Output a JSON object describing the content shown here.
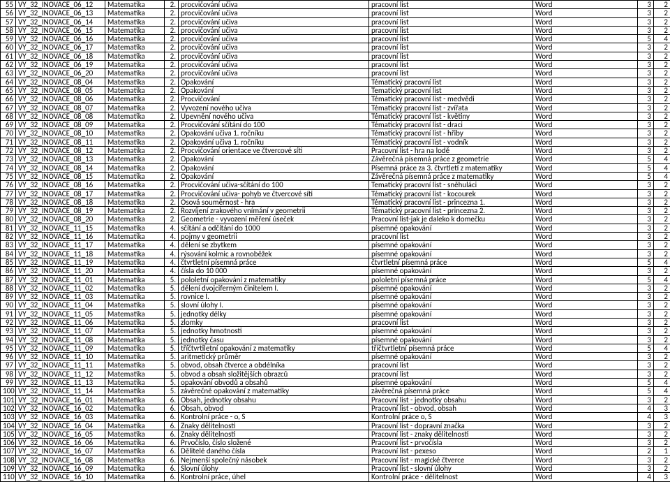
{
  "columns": [
    "num",
    "code",
    "subject",
    "grade",
    "topic",
    "output",
    "type",
    "a",
    "b"
  ],
  "rows": [
    [
      55,
      "VY_32_INOVACE_06_12",
      "Matematika",
      "2.",
      "procvičování učiva",
      "pracovní list",
      "Word",
      3,
      2
    ],
    [
      56,
      "VY_32_INOVACE_06_13",
      "Matematika",
      "2.",
      "procvičování učiva",
      "pracovní list",
      "Word",
      3,
      2
    ],
    [
      57,
      "VY_32_INOVACE_06_14",
      "Matematika",
      "2.",
      "procvičování učiva",
      "pracovní list",
      "Word",
      3,
      2
    ],
    [
      58,
      "VY_32_INOVACE_06_15",
      "Matematika",
      "2.",
      "procvičování učiva",
      "pracovní list",
      "Word",
      3,
      2
    ],
    [
      59,
      "VY_32_INOVACE_06_16",
      "Matematika",
      "2.",
      "procvičování učiva",
      "pracovní list",
      "Word",
      5,
      4
    ],
    [
      60,
      "VY_32_INOVACE_06_17",
      "Matematika",
      "2.",
      "procvičování učiva",
      "pracovní list",
      "Word",
      3,
      2
    ],
    [
      61,
      "VY_32_INOVACE_06_18",
      "Matematika",
      "2.",
      "procvičování učiva",
      "pracovní list",
      "Word",
      3,
      2
    ],
    [
      62,
      "VY_32_INOVACE_06_19",
      "Matematika",
      "2.",
      "procvičování učiva",
      "pracovní list",
      "Word",
      3,
      2
    ],
    [
      63,
      "VY_32_INOVACE_06_20",
      "Matematika",
      "2.",
      "procvičování učiva",
      "pracovní list",
      "Word",
      3,
      2
    ],
    [
      64,
      "VY_32_INOVACE_08_04",
      "Matematika",
      "2.",
      "Opakování",
      "Tématický pracovní list",
      "Word",
      3,
      2
    ],
    [
      65,
      "VY_32_INOVACE_08_05",
      "Matematika",
      "2.",
      "Opakování",
      "Tematický pracovní list",
      "Word",
      3,
      2
    ],
    [
      66,
      "VY_32_INOVACE_08_06",
      "Matematika",
      "2.",
      "Procvičování",
      "Tématický pracovní list - medvědi",
      "Word",
      3,
      2
    ],
    [
      67,
      "VY_32_INOVACE_08_07",
      "Matematika",
      "2.",
      "Vyvození nového učiva",
      "Tématický pracovní list - zvířata",
      "Word",
      3,
      2
    ],
    [
      68,
      "VY_32_INOVACE_08_08",
      "Matematika",
      "2.",
      "Upevnění nového učiva",
      "Tématický pracovní list - květiny",
      "Word",
      3,
      2
    ],
    [
      69,
      "VY_32_INOVACE_08_09",
      "Matematika",
      "2.",
      "Procvičování sčítání do 100",
      "Tématický pracovní list - draci",
      "Word",
      3,
      2
    ],
    [
      70,
      "VY_32_INOVACE_08_10",
      "Matematika",
      "2.",
      "Opakování učiva 1. ročníku",
      "Tématický pracovní list - hřiby",
      "Word",
      3,
      2
    ],
    [
      71,
      "VY_32_INOVACE_08_11",
      "Matematika",
      "2.",
      "Opakování učiva 1. ročníku",
      "Tématický pracovní list - vodník",
      "Word",
      3,
      2
    ],
    [
      72,
      "VY_32_INOVACE_08_12",
      "Matematika",
      "2.",
      "Procvičování orientace ve čtvercové síti",
      "Pracovní list - hra na lodě",
      "Word",
      3,
      2
    ],
    [
      73,
      "VY_32_INOVACE_08_13",
      "Matematika",
      "2.",
      "Opakování",
      "Závěrečná písemná práce z geometrie",
      "Word",
      5,
      4
    ],
    [
      74,
      "VY_32_INOVACE_08_14",
      "Matematika",
      "2.",
      "Opakování",
      "Písemná práce za 3. čtvrtletí z matematiky",
      "Word",
      5,
      4
    ],
    [
      75,
      "VY_32_INOVACE_08_15",
      "Matematika",
      "2.",
      "Opakování",
      "Závěrečná písemná práce z matematiky",
      "Word",
      5,
      4
    ],
    [
      76,
      "VY_32_INOVACE_08_16",
      "Matematika",
      "2.",
      "Procvičování učiva-sčítání do 100",
      "Tematický pracovní  list - sněhuláci",
      "Word",
      3,
      2
    ],
    [
      77,
      "VY_32_INOVACE_08_17",
      "Matematika",
      "2.",
      "Procvičování učiva- pohyb ve čtvercové síti",
      "Tématický pracovní list  - kocourek",
      "Word",
      3,
      2
    ],
    [
      78,
      "VY_32_INOVACE_08_18",
      "Matematika",
      "2.",
      "Osová souměrnost - hra",
      "Tématický pracovní list - princezna 1.",
      "Word",
      3,
      2
    ],
    [
      79,
      "VY_32_INOVACE_08_19",
      "Matematika",
      "2.",
      "Rozvíjení zrakového vnímání v geometrii",
      "Tématický pracovní list - princezna 2.",
      "Word",
      3,
      2
    ],
    [
      80,
      "VY_32_INOVACE_08_20",
      "Matematika",
      "2.",
      "Geometrie - vyvození měření úseček",
      "Pracovní list-jak je daleko k domečku",
      "Word",
      3,
      2
    ],
    [
      81,
      "VY_32_INOVACE_11_15",
      "Matematika",
      "4.",
      "sčítání a odčítání do 1000",
      "písemné opakování",
      "Word",
      3,
      2
    ],
    [
      82,
      "VY_32_INOVACE_11_16",
      "Matematika",
      "4.",
      "pojmy v geometrii",
      "pracovní list",
      "Word",
      3,
      2
    ],
    [
      83,
      "VY_32_INOVACE_11_17",
      "Matematika",
      "4.",
      "dělení se zbytkem",
      "písemné opakování",
      "Word",
      3,
      2
    ],
    [
      84,
      "VY_32_INOVACE_11_18",
      "Matematika",
      "4.",
      "rýsování kolmic a rovnoběžek",
      "písemné opakování",
      "Word",
      3,
      2
    ],
    [
      85,
      "VY_32_INOVACE_11_19",
      "Matematika",
      "4.",
      "čtvrtletní písemná práce",
      "čtvrtletní písemná práce",
      "Word",
      5,
      4
    ],
    [
      86,
      "VY_32_INOVACE_11_20",
      "Matematika",
      "4.",
      "čísla do 10 000",
      "písemné opakování",
      "Word",
      3,
      2
    ],
    [
      87,
      "VY_32_INOVACE_11_01",
      "Matematika",
      "5.",
      "pololetní opakování z matematiky",
      "pololetní písemná práce",
      "Word",
      5,
      4
    ],
    [
      88,
      "VY_32_INOVACE_11_02",
      "Matematika",
      "5.",
      "dělení dvojciferným činitelem I.",
      "písemné opakování",
      "Word",
      3,
      2
    ],
    [
      89,
      "VY_32_INOVACE_11_03",
      "Matematika",
      "5.",
      "rovnice I.",
      "písemné opakování",
      "Word",
      3,
      2
    ],
    [
      90,
      "VY_32_INOVACE_11_04",
      "Matematika",
      "5.",
      "slovní úlohy I.",
      "písemné opakování",
      "Word",
      3,
      2
    ],
    [
      91,
      "VY_32_INOVACE_11_05",
      "Matematika",
      "5.",
      "jednotky délky",
      "písemné opakování",
      "Word",
      3,
      2
    ],
    [
      92,
      "VY_32_INOVACE_11_06",
      "Matematika",
      "5.",
      "zlomky",
      "pracovní list",
      "Word",
      3,
      2
    ],
    [
      93,
      "VY_32_INOVACE_11_07",
      "Matematika",
      "5.",
      "jednotky hmotnosti",
      "písemné opakování",
      "Word",
      3,
      2
    ],
    [
      94,
      "VY_32_INOVACE_11_08",
      "Matematika",
      "5.",
      "jednotky času",
      "písemné opakování",
      "Word",
      3,
      2
    ],
    [
      95,
      "VY_32_INOVACE_11_09",
      "Matematika",
      "5.",
      "tříčtvrtiletní opakování z matematiky",
      "tříčtvrtletní písemná práce",
      "Word",
      5,
      4
    ],
    [
      96,
      "VY_32_INOVACE_11_10",
      "Matematika",
      "5.",
      "aritmetický průměr",
      "písemné opakování",
      "Word",
      3,
      2
    ],
    [
      97,
      "VY_32_INOVACE_11_11",
      "Matematika",
      "5.",
      "obvod, obsah čtverce a obdélníka",
      "pracovní list",
      "Word",
      3,
      2
    ],
    [
      98,
      "VY_32_INOVACE_11_12",
      "Matematika",
      "5.",
      "obvod a obsah složitějších obrazců",
      "pracovní list",
      "Word",
      3,
      2
    ],
    [
      99,
      "VY_32_INOVACE_11_13",
      "Matematika",
      "5.",
      "opakování obvodů a obsahů",
      "písemné opakování",
      "Word",
      5,
      4
    ],
    [
      100,
      "VY_32_INOVACE_11_14",
      "Matematika",
      "5.",
      "závěrečné opakování z matematiky",
      "závěrečná písemná práce",
      "Word",
      5,
      4
    ],
    [
      101,
      "VY_32_INOVACE_16_01",
      "Matematika",
      "6.",
      "Obsah, jednotky obsahu",
      "Pracovní list - jednotky obsahu",
      "Word",
      3,
      2
    ],
    [
      102,
      "VY_32_INOVACE_16_02",
      "Matematika",
      "6.",
      "Obsah, obvod",
      "Pracovní list - obvod, obsah",
      "Word",
      4,
      3
    ],
    [
      103,
      "VY_32_INOVACE_16_03",
      "Matematika",
      "6.",
      "Kontrolní práce - o, S",
      "Kontrolní práce o, S",
      "Word",
      4,
      3
    ],
    [
      104,
      "VY_32_INOVACE_16_04",
      "Matematika",
      "6.",
      "Znaky dělitelnosti",
      "Pracovní list - dopravní značka",
      "Word",
      3,
      2
    ],
    [
      105,
      "VY_32_INOVACE_16_05",
      "Matematika",
      "6.",
      "Znaky dělitelnosti",
      "Pracovní list - znaky dělitelnosti",
      "Word",
      3,
      2
    ],
    [
      106,
      "VY_32_INOVACE_16_06",
      "Matematika",
      "6.",
      "Prvočíslo, číslo složené",
      "Pracovní list - prvočísla",
      "Word",
      3,
      2
    ],
    [
      107,
      "VY_32_INOVACE_16_07",
      "Matematika",
      "6.",
      "Dělitelé daného čísla",
      "Pracovní list - pexeso",
      "Word",
      2,
      1
    ],
    [
      108,
      "VY_32_INOVACE_16_08",
      "Matematika",
      "6.",
      "Nejmenší společný násobek",
      "Pracovní list - magické čtverce",
      "Word",
      3,
      2
    ],
    [
      109,
      "VY_32_INOVACE_16_09",
      "Matematika",
      "6.",
      "Slovní úlohy",
      "Pracovní list - slovní úlohy",
      "Word",
      3,
      2
    ],
    [
      110,
      "VY_32_INOVACE_16_10",
      "Matematika",
      "6.",
      "Kontrolní práce, úhel",
      "Kontrolní práce - dělitelnost",
      "Word",
      4,
      3
    ]
  ]
}
